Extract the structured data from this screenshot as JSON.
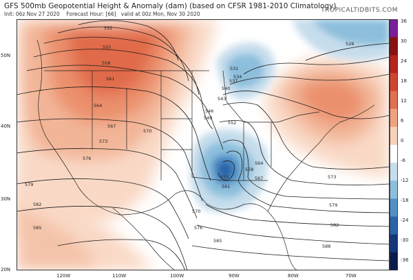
{
  "header": {
    "title": "GFS 500mb Geopotential Height & Anomaly (dam) (based on CFSR 1981-2010 Climatology)",
    "init": "Init: 06z Nov 27 2020",
    "forecast_hour": "Forecast Hour: [66]",
    "valid": "valid at 00z Mon, Nov 30 2020",
    "brand": "TROPICALTIDBITS.COM"
  },
  "map_labels": {
    "latitudes": [
      "50N",
      "40N",
      "30N",
      "20N"
    ],
    "longitudes": [
      "120W",
      "110W",
      "100W",
      "90W",
      "80W",
      "70W"
    ]
  },
  "contour_labels": [
    "552",
    "555",
    "558",
    "561",
    "564",
    "567",
    "570",
    "573",
    "576",
    "579",
    "582",
    "585",
    "528",
    "531",
    "534",
    "537",
    "540",
    "543",
    "546",
    "549",
    "552",
    "555",
    "558",
    "561",
    "564",
    "567",
    "570",
    "573",
    "576",
    "579",
    "582",
    "585",
    "588"
  ],
  "colorbar": {
    "labels": [
      "36",
      "30",
      "24",
      "18",
      "12",
      "6",
      "0",
      "-6",
      "-12",
      "-18",
      "-24",
      "-30",
      "-36"
    ],
    "colors": [
      "#7a1e9a",
      "#8b1010",
      "#b8231b",
      "#d04530",
      "#e07050",
      "#efa27e",
      "#f7d0b8",
      "#ffffff",
      "#c6ddec",
      "#8dbfdd",
      "#4f91c6",
      "#2a63a8",
      "#14367a",
      "#0a1a4f"
    ]
  }
}
